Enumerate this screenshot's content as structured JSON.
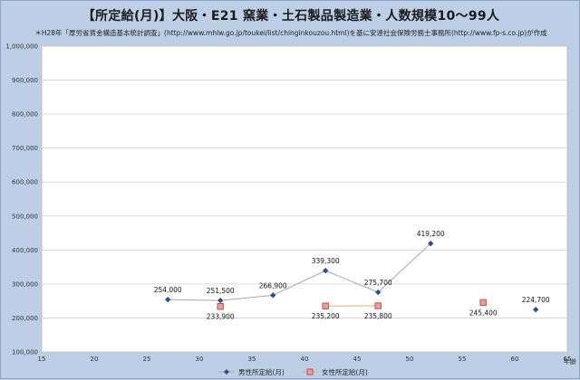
{
  "chart_data": {
    "type": "line",
    "title": "【所定給(月)】大阪・E21 窯業・土石製品製造業・人数規模10～99人",
    "subtitle": "＊H28年「厚労省賃金構造基本統計調査」(http://www.mhlw.go.jp/toukei/list/chinginkouzou.html)を基に安達社会保険労務士事務所(http://www.fp-s.co.jp)が作成",
    "xlabel": "年齢",
    "ylabel": "",
    "xlim": [
      15,
      65
    ],
    "ylim": [
      100000,
      1000000
    ],
    "x_ticks": [
      15,
      20,
      25,
      30,
      35,
      40,
      45,
      50,
      55,
      60,
      65
    ],
    "y_ticks": [
      100000,
      200000,
      300000,
      400000,
      500000,
      600000,
      700000,
      800000,
      900000,
      1000000
    ],
    "y_tick_labels": [
      "100,000",
      "200,000",
      "300,000",
      "400,000",
      "500,000",
      "600,000",
      "700,000",
      "800,000",
      "900,000",
      "1,000,000"
    ],
    "grid": "horizontal",
    "legend_position": "bottom",
    "series": [
      {
        "name": "男性所定給(月)",
        "color": "#2f4f8a",
        "marker": "diamond",
        "line_color": "#a9a9a9",
        "x": [
          27,
          32,
          37,
          42,
          47,
          52,
          62
        ],
        "values": [
          254000,
          251500,
          266900,
          339300,
          275700,
          419200,
          224700
        ],
        "labels": [
          "254,000",
          "251,500",
          "266,900",
          "339,300",
          "275,700",
          "419,200",
          "224,700"
        ],
        "connected": [
          true,
          true,
          true,
          true,
          true,
          true,
          false
        ]
      },
      {
        "name": "女性所定給(月)",
        "color": "#c0504d",
        "marker": "square",
        "line_color": "#d8b27a",
        "x": [
          32,
          42,
          47,
          57
        ],
        "values": [
          233900,
          235200,
          235800,
          245400
        ],
        "labels": [
          "233,900",
          "235,200",
          "235,800",
          "245,400"
        ],
        "connected": [
          false,
          false,
          true,
          false
        ]
      }
    ]
  }
}
